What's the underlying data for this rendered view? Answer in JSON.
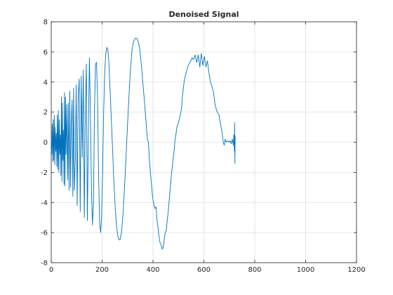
{
  "chart_data": {
    "type": "line",
    "title": "Denoised Signal",
    "xlabel": "",
    "ylabel": "",
    "xlim": [
      0,
      1200
    ],
    "ylim": [
      -8,
      8
    ],
    "xticks": [
      0,
      200,
      400,
      600,
      800,
      1000,
      1200
    ],
    "yticks": [
      -8,
      -6,
      -4,
      -2,
      0,
      2,
      4,
      6,
      8
    ],
    "grid": true,
    "legend": "none",
    "color": "#0072bd",
    "series": [
      {
        "values": [
          [
            0,
            0.2
          ],
          [
            2,
            -0.8
          ],
          [
            4,
            1.2
          ],
          [
            6,
            -1.3
          ],
          [
            8,
            1.5
          ],
          [
            10,
            -1.2
          ],
          [
            12,
            1.8
          ],
          [
            14,
            -1.5
          ],
          [
            16,
            1.0
          ],
          [
            18,
            -0.6
          ],
          [
            20,
            0.6
          ],
          [
            22,
            -1.6
          ],
          [
            24,
            1.8
          ],
          [
            26,
            -1.8
          ],
          [
            28,
            2.1
          ],
          [
            30,
            -2.0
          ],
          [
            32,
            1.5
          ],
          [
            34,
            -0.8
          ],
          [
            36,
            0.5
          ],
          [
            38,
            -2.2
          ],
          [
            40,
            3.0
          ],
          [
            42,
            -2.6
          ],
          [
            44,
            2.6
          ],
          [
            46,
            -1.2
          ],
          [
            48,
            0.8
          ],
          [
            50,
            -2.8
          ],
          [
            52,
            3.3
          ],
          [
            54,
            -2.9
          ],
          [
            56,
            3.0
          ],
          [
            58,
            -0.8
          ],
          [
            61,
            2.5
          ],
          [
            64,
            -2.5
          ],
          [
            67,
            2.6
          ],
          [
            70,
            -3.2
          ],
          [
            73,
            3.4
          ],
          [
            76,
            -3.0
          ],
          [
            79,
            1.2
          ],
          [
            82,
            2.8
          ],
          [
            85,
            -3.6
          ],
          [
            88,
            3.6
          ],
          [
            91,
            -3.2
          ],
          [
            95,
            -1.0
          ],
          [
            98,
            3.8
          ],
          [
            102,
            -4.2
          ],
          [
            106,
            3.0
          ],
          [
            110,
            4.2
          ],
          [
            114,
            -4.6
          ],
          [
            118,
            4.4
          ],
          [
            122,
            -1.0
          ],
          [
            126,
            4.8
          ],
          [
            130,
            -5.0
          ],
          [
            134,
            2.0
          ],
          [
            138,
            5.2
          ],
          [
            142,
            -5.2
          ],
          [
            146,
            0.5
          ],
          [
            150,
            5.6
          ],
          [
            154,
            2.0
          ],
          [
            158,
            -3.0
          ],
          [
            162,
            -5.5
          ],
          [
            166,
            -4.0
          ],
          [
            170,
            2.0
          ],
          [
            174,
            5.2
          ],
          [
            178,
            5.3
          ],
          [
            182,
            3.0
          ],
          [
            186,
            -2.0
          ],
          [
            190,
            -5.3
          ],
          [
            194,
            -6.0
          ],
          [
            198,
            -5.0
          ],
          [
            202,
            -2.0
          ],
          [
            206,
            2.0
          ],
          [
            210,
            4.5
          ],
          [
            214,
            5.8
          ],
          [
            218,
            6.3
          ],
          [
            222,
            6.2
          ],
          [
            226,
            5.5
          ],
          [
            230,
            4.0
          ],
          [
            235,
            2.0
          ],
          [
            240,
            0.0
          ],
          [
            246,
            -2.5
          ],
          [
            252,
            -4.5
          ],
          [
            258,
            -5.8
          ],
          [
            264,
            -6.4
          ],
          [
            270,
            -6.5
          ],
          [
            276,
            -6.0
          ],
          [
            282,
            -4.8
          ],
          [
            288,
            -3.0
          ],
          [
            294,
            -1.0
          ],
          [
            300,
            1.2
          ],
          [
            306,
            3.2
          ],
          [
            312,
            5.0
          ],
          [
            318,
            6.2
          ],
          [
            324,
            6.7
          ],
          [
            330,
            6.9
          ],
          [
            336,
            6.9
          ],
          [
            342,
            6.7
          ],
          [
            348,
            6.2
          ],
          [
            354,
            5.2
          ],
          [
            360,
            4.0
          ],
          [
            366,
            2.8
          ],
          [
            372,
            1.5
          ],
          [
            378,
            0.2
          ],
          [
            382,
            0.0
          ],
          [
            386,
            -1.2
          ],
          [
            392,
            -2.4
          ],
          [
            398,
            -3.6
          ],
          [
            404,
            -4.2
          ],
          [
            408,
            -4.4
          ],
          [
            412,
            -4.3
          ],
          [
            416,
            -5.2
          ],
          [
            420,
            -5.7
          ],
          [
            424,
            -6.3
          ],
          [
            428,
            -6.7
          ],
          [
            432,
            -6.8
          ],
          [
            436,
            -7.1
          ],
          [
            440,
            -7.0
          ],
          [
            444,
            -6.5
          ],
          [
            448,
            -6.0
          ],
          [
            452,
            -5.9
          ],
          [
            456,
            -5.2
          ],
          [
            460,
            -4.6
          ],
          [
            464,
            -3.8
          ],
          [
            468,
            -3.0
          ],
          [
            472,
            -2.2
          ],
          [
            476,
            -1.6
          ],
          [
            480,
            -1.0
          ],
          [
            484,
            -0.4
          ],
          [
            486,
            0.1
          ],
          [
            490,
            0.5
          ],
          [
            494,
            1.0
          ],
          [
            500,
            1.3
          ],
          [
            506,
            1.7
          ],
          [
            512,
            2.2
          ],
          [
            516,
            3.1
          ],
          [
            520,
            3.7
          ],
          [
            524,
            4.2
          ],
          [
            530,
            4.6
          ],
          [
            536,
            5.0
          ],
          [
            542,
            5.2
          ],
          [
            548,
            5.4
          ],
          [
            554,
            5.6
          ],
          [
            560,
            5.5
          ],
          [
            566,
            5.8
          ],
          [
            572,
            5.3
          ],
          [
            578,
            5.8
          ],
          [
            584,
            5.0
          ],
          [
            590,
            5.9
          ],
          [
            596,
            5.1
          ],
          [
            602,
            5.7
          ],
          [
            608,
            5.0
          ],
          [
            614,
            5.4
          ],
          [
            620,
            4.6
          ],
          [
            626,
            4.0
          ],
          [
            632,
            3.7
          ],
          [
            638,
            3.3
          ],
          [
            644,
            2.5
          ],
          [
            650,
            2.1
          ],
          [
            656,
            1.9
          ],
          [
            660,
            1.8
          ],
          [
            664,
            1.3
          ],
          [
            668,
            1.0
          ],
          [
            672,
            0.6
          ],
          [
            676,
            0.0
          ],
          [
            680,
            -0.2
          ],
          [
            684,
            0.2
          ],
          [
            688,
            0.0
          ],
          [
            694,
            0.1
          ],
          [
            700,
            0.0
          ],
          [
            704,
            0.1
          ],
          [
            708,
            -0.1
          ],
          [
            712,
            0.2
          ],
          [
            716,
            -0.2
          ],
          [
            718,
            0.5
          ],
          [
            720,
            -0.6
          ],
          [
            721,
            1.3
          ],
          [
            722,
            -1.4
          ],
          [
            723,
            0.4
          ]
        ]
      }
    ]
  }
}
